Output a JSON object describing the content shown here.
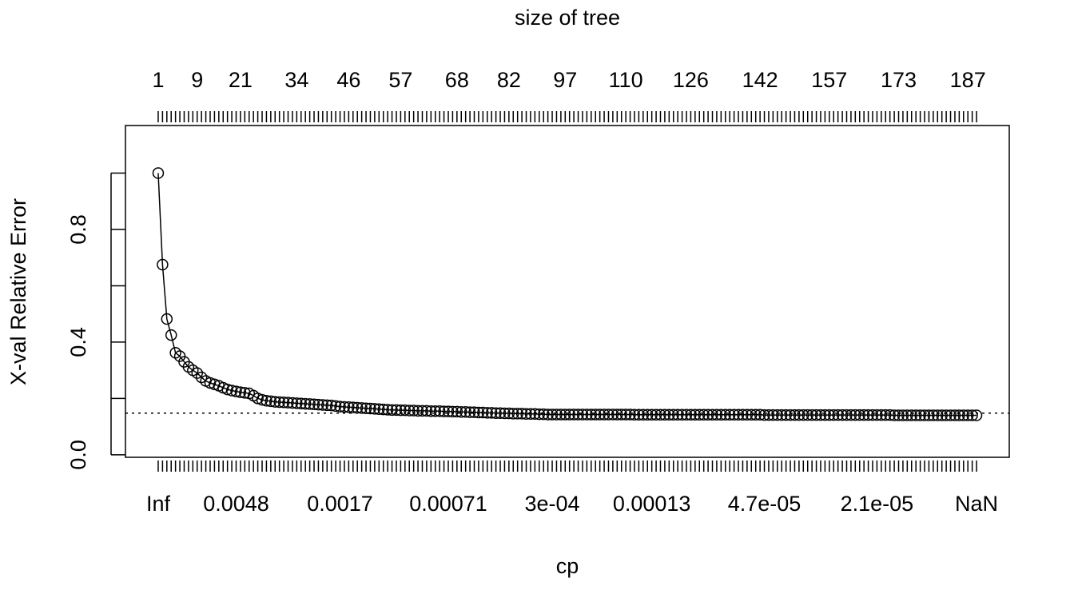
{
  "chart_data": {
    "type": "line",
    "title": "size of tree",
    "x_label": "cp",
    "y_label": "X-val Relative Error",
    "color": "#000000",
    "x": [
      1,
      2,
      3,
      4,
      5,
      6,
      7,
      8,
      9,
      10,
      11,
      12,
      13,
      14,
      15,
      16,
      17,
      18,
      19,
      20,
      21,
      22,
      23,
      24,
      25,
      26,
      27,
      28,
      29,
      30,
      31,
      32,
      33,
      34,
      35,
      36,
      37,
      38,
      39,
      40,
      41,
      42,
      43,
      44,
      45,
      46,
      47,
      48,
      49,
      50,
      51,
      52,
      53,
      54,
      55,
      56,
      57,
      58,
      59,
      60,
      61,
      62,
      63,
      64,
      65,
      66,
      67,
      68,
      69,
      70,
      71,
      72,
      73,
      74,
      75,
      76,
      77,
      78,
      79,
      80,
      81,
      82,
      83,
      84,
      85,
      86,
      87,
      88,
      89,
      90,
      91,
      92,
      93,
      94,
      95,
      96,
      97,
      98,
      99,
      100,
      101,
      102,
      103,
      104,
      105,
      106,
      107,
      108,
      109,
      110,
      111,
      112,
      113,
      114,
      115,
      116,
      117,
      118,
      119,
      120,
      121,
      122,
      123,
      124,
      125,
      126,
      127,
      128,
      129,
      130,
      131,
      132,
      133,
      134,
      135,
      136,
      137,
      138,
      139,
      140,
      141,
      142,
      143,
      144,
      145,
      146,
      147,
      148,
      149,
      150,
      151,
      152,
      153,
      154,
      155,
      156,
      157,
      158,
      159,
      160,
      161,
      162,
      163,
      164,
      165,
      166,
      167,
      168,
      169,
      170,
      171,
      172,
      173,
      174,
      175,
      176,
      177,
      178,
      179,
      180,
      181,
      182,
      183,
      184,
      185,
      186,
      187,
      188,
      189,
      190
    ],
    "values": [
      1.0,
      0.675,
      0.482,
      0.425,
      0.362,
      0.35,
      0.33,
      0.312,
      0.3,
      0.29,
      0.275,
      0.262,
      0.255,
      0.25,
      0.245,
      0.238,
      0.232,
      0.228,
      0.225,
      0.222,
      0.22,
      0.218,
      0.21,
      0.2,
      0.195,
      0.192,
      0.19,
      0.188,
      0.187,
      0.186,
      0.185,
      0.184,
      0.183,
      0.182,
      0.181,
      0.18,
      0.179,
      0.178,
      0.177,
      0.176,
      0.175,
      0.173,
      0.171,
      0.17,
      0.169,
      0.168,
      0.167,
      0.166,
      0.165,
      0.164,
      0.163,
      0.162,
      0.161,
      0.16,
      0.159,
      0.159,
      0.158,
      0.158,
      0.157,
      0.157,
      0.156,
      0.156,
      0.156,
      0.155,
      0.155,
      0.155,
      0.154,
      0.154,
      0.153,
      0.153,
      0.152,
      0.152,
      0.151,
      0.151,
      0.15,
      0.15,
      0.149,
      0.149,
      0.148,
      0.148,
      0.147,
      0.147,
      0.146,
      0.146,
      0.146,
      0.145,
      0.145,
      0.145,
      0.144,
      0.144,
      0.143,
      0.143,
      0.143,
      0.143,
      0.143,
      0.143,
      0.143,
      0.143,
      0.143,
      0.143,
      0.143,
      0.143,
      0.143,
      0.143,
      0.143,
      0.143,
      0.143,
      0.143,
      0.143,
      0.143,
      0.142,
      0.142,
      0.142,
      0.142,
      0.142,
      0.142,
      0.142,
      0.142,
      0.142,
      0.142,
      0.142,
      0.142,
      0.142,
      0.142,
      0.142,
      0.142,
      0.142,
      0.142,
      0.142,
      0.142,
      0.142,
      0.142,
      0.142,
      0.142,
      0.142,
      0.142,
      0.142,
      0.142,
      0.142,
      0.142,
      0.141,
      0.141,
      0.141,
      0.141,
      0.141,
      0.141,
      0.141,
      0.141,
      0.141,
      0.141,
      0.141,
      0.141,
      0.141,
      0.141,
      0.141,
      0.141,
      0.141,
      0.141,
      0.141,
      0.141,
      0.141,
      0.141,
      0.141,
      0.141,
      0.141,
      0.141,
      0.141,
      0.141,
      0.141,
      0.141,
      0.14,
      0.14,
      0.14,
      0.14,
      0.14,
      0.14,
      0.14,
      0.14,
      0.14,
      0.14,
      0.14,
      0.14,
      0.14,
      0.14,
      0.14,
      0.14,
      0.14,
      0.14,
      0.14,
      0.14
    ],
    "reference_line": 0.148,
    "xlim": [
      -6.56,
      197.56
    ],
    "ylim": [
      -0.009,
      1.169
    ],
    "yticks": [
      {
        "value": 0,
        "label": "0.0"
      },
      {
        "value": 0.4,
        "label": "0.4"
      },
      {
        "value": 0.8,
        "label": "0.8"
      }
    ],
    "yticks_minor": [
      0.2,
      0.6,
      1.0
    ],
    "xticks": [
      {
        "value": 1,
        "label": "Inf"
      },
      {
        "value": 19,
        "label": "0.0048"
      },
      {
        "value": 43,
        "label": "0.0017"
      },
      {
        "value": 68,
        "label": "0.00071"
      },
      {
        "value": 92,
        "label": "3e-04"
      },
      {
        "value": 115,
        "label": "0.00013"
      },
      {
        "value": 141,
        "label": "4.7e-05"
      },
      {
        "value": 167,
        "label": "2.1e-05"
      },
      {
        "value": 190,
        "label": "NaN"
      }
    ],
    "x2ticks": [
      1,
      {
        "value": 10,
        "label": "9"
      },
      {
        "value": 20,
        "label": "21"
      },
      {
        "value": 33,
        "label": "34"
      },
      {
        "value": 45,
        "label": "46"
      },
      {
        "value": 57,
        "label": "57"
      },
      {
        "value": 70,
        "label": "68"
      },
      {
        "value": 82,
        "label": "82"
      },
      {
        "value": 95,
        "label": "97"
      },
      {
        "value": 109,
        "label": "110"
      },
      {
        "value": 124,
        "label": "126"
      },
      {
        "value": 140,
        "label": "142"
      },
      {
        "value": 156,
        "label": "157"
      },
      {
        "value": 172,
        "label": "173"
      },
      {
        "value": 188,
        "label": "187"
      }
    ]
  }
}
